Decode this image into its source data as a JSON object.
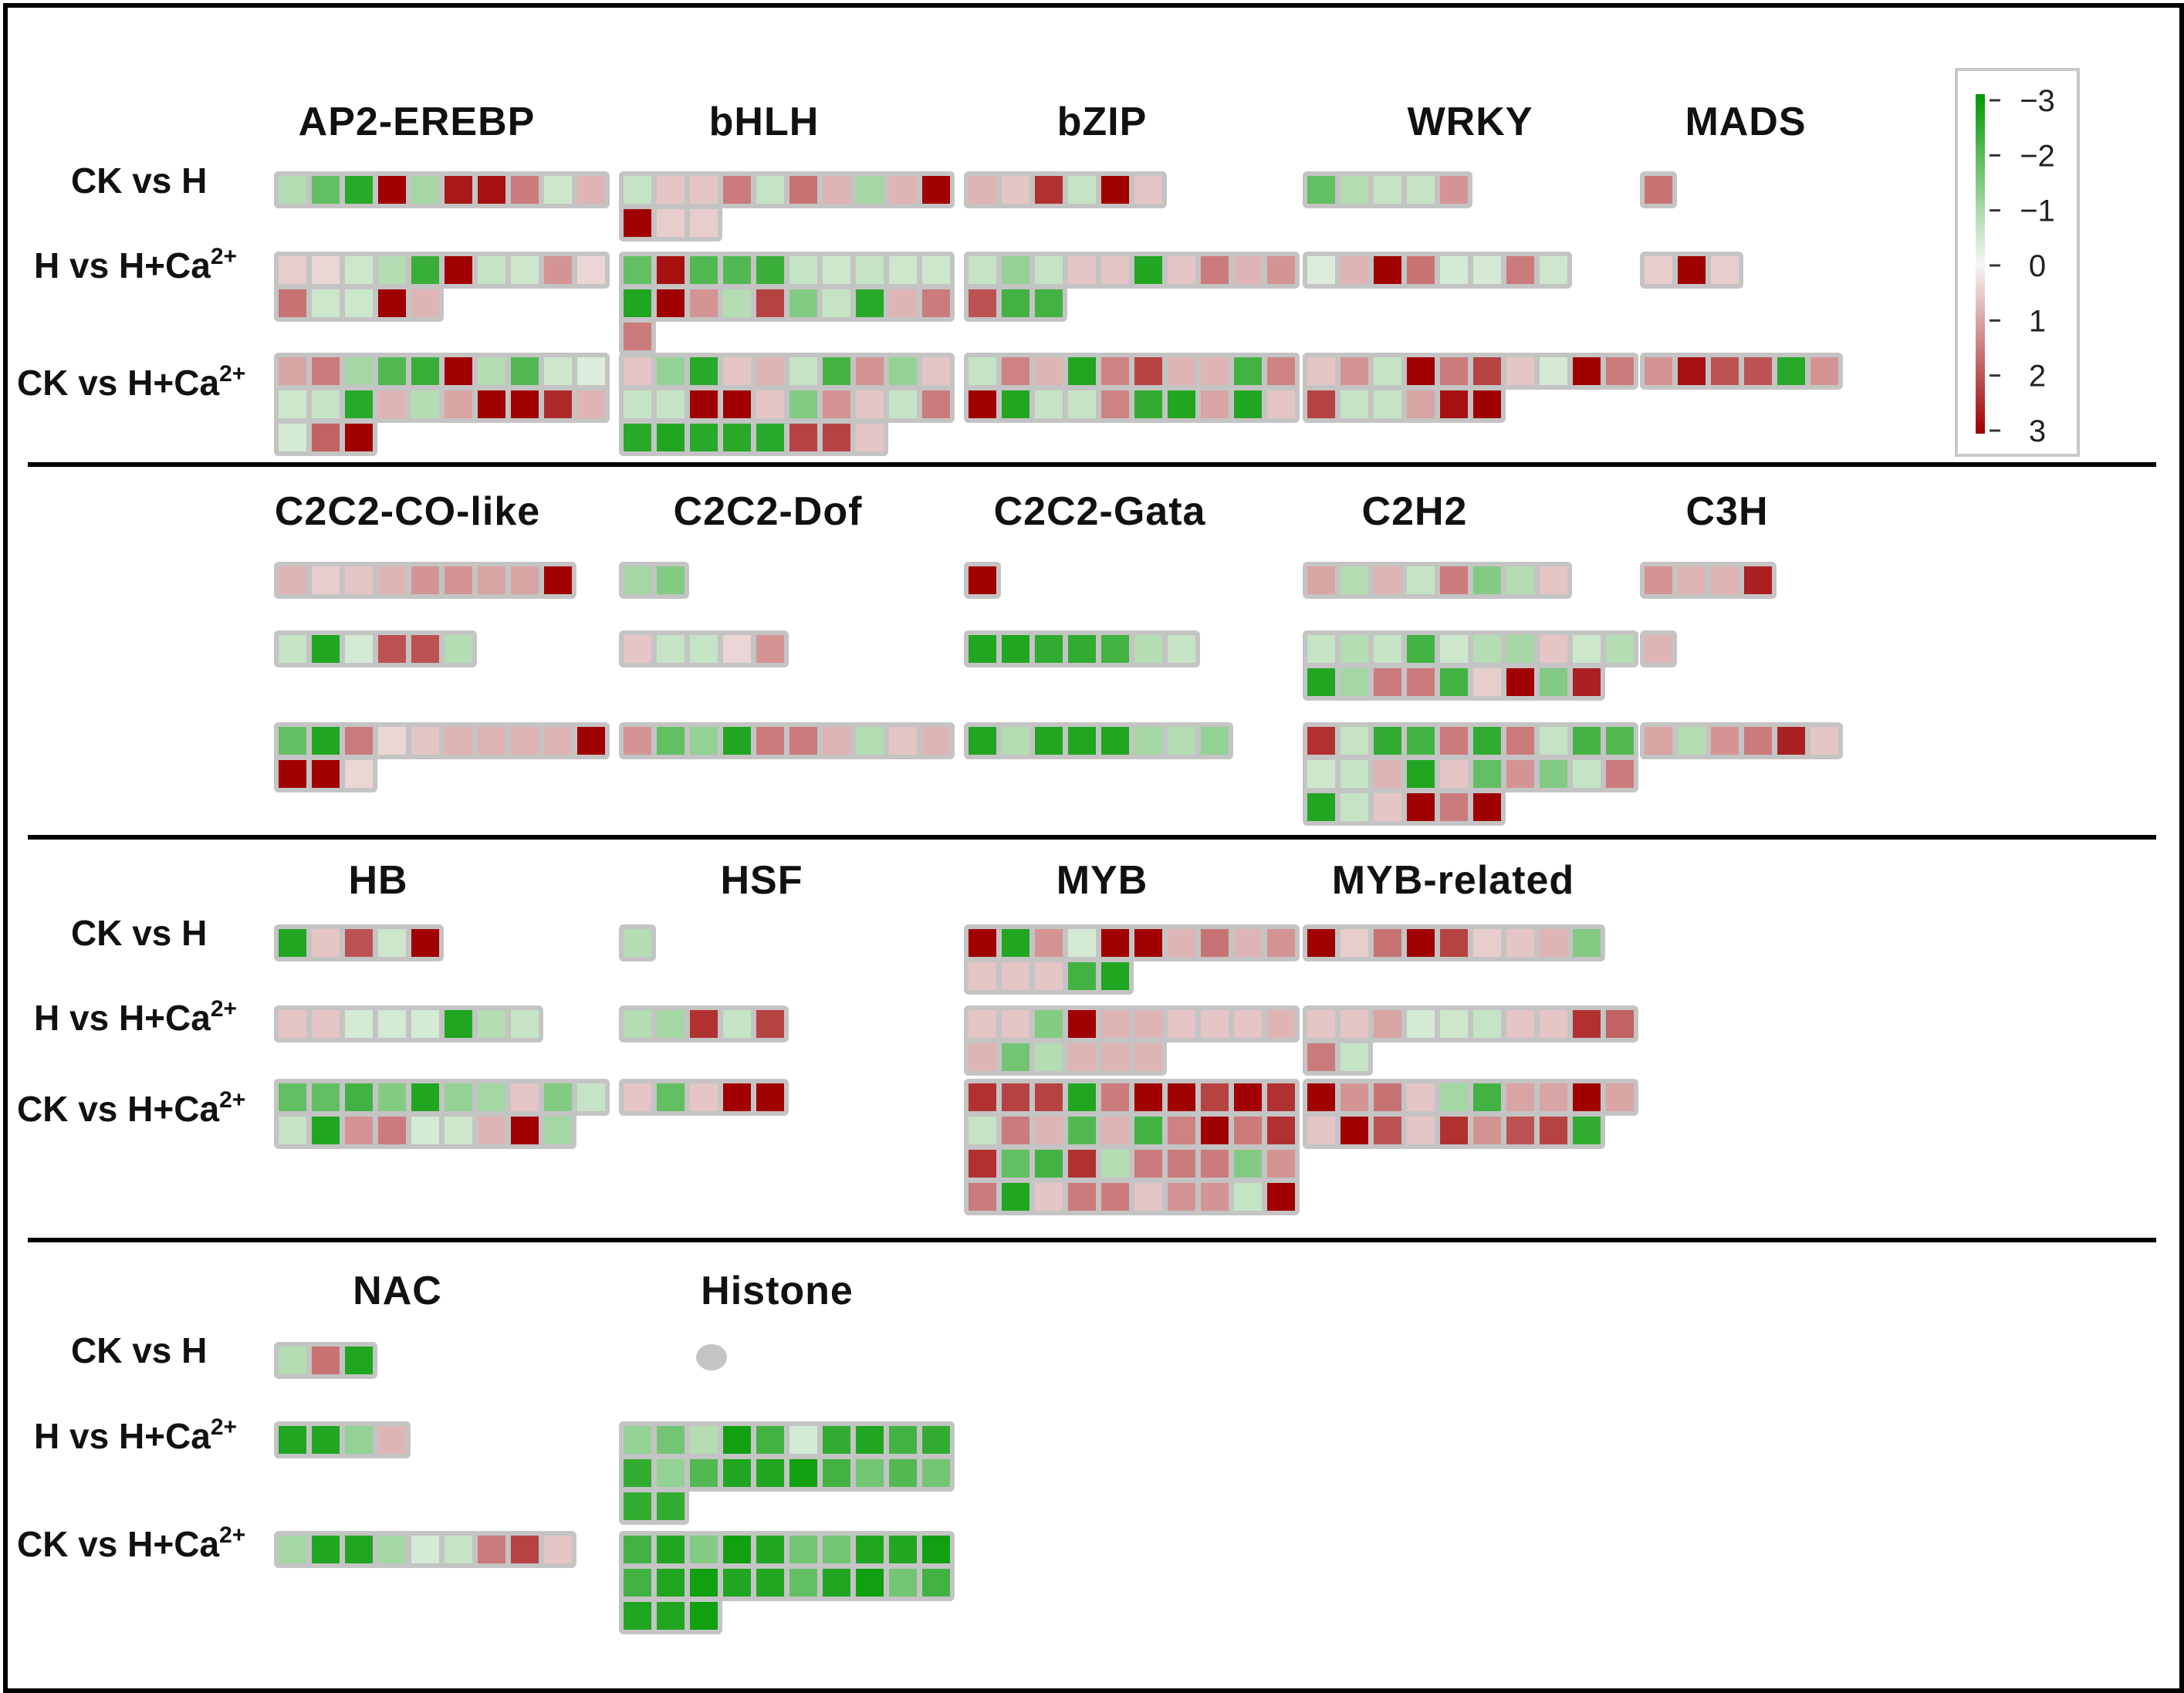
{
  "comparisons": [
    "CK vs H",
    "H vs H+Ca",
    "CK vs H+Ca"
  ],
  "superscript": "2+",
  "colors": {
    "background_box": "#c4c4c4",
    "positive_max": "#a00000",
    "negative_max": "#009a00",
    "neutral": "#f6f6f6",
    "divider": "#000000"
  },
  "legend": {
    "ticks": [
      "−3",
      "−2",
      "−1",
      "0",
      "1",
      "2",
      "3"
    ],
    "min": -3,
    "max": 3,
    "note": "sign convention: green = negative (top), red = positive (bottom)"
  },
  "panels": [
    {
      "show_comparison_labels": true,
      "families": [
        {
          "name": "AP2-EREBP",
          "rows": [
            [
              -0.8,
              -1.8,
              -2.5,
              3,
              -1,
              2.7,
              2.8,
              1.5,
              -0.5,
              0.8
            ],
            [
              0.5,
              0.4,
              -0.5,
              -0.8,
              -2.3,
              3,
              -0.6,
              -0.5,
              1.2,
              0.4,
              1.6,
              -0.5,
              -0.5,
              3,
              0.8
            ],
            [
              1,
              1.5,
              -1,
              -2,
              -2.3,
              3,
              -0.8,
              -2,
              -0.5,
              -0.3,
              -0.5,
              -0.6,
              -2.5,
              0.8,
              -0.8,
              1,
              3,
              3,
              2.5,
              0.8,
              -0.4,
              1.8,
              3
            ]
          ]
        },
        {
          "name": "bHLH",
          "rows": [
            [
              -0.6,
              0.6,
              0.6,
              1.5,
              -0.6,
              1.6,
              0.8,
              -1.0,
              0.8,
              3,
              3,
              0.5,
              0.5
            ],
            [
              -1.8,
              2.8,
              -2.0,
              -2.0,
              -2.3,
              -0.6,
              -0.5,
              -0.6,
              -0.5,
              -0.5,
              -2.6,
              3,
              1.2,
              -0.8,
              2.2,
              -1.4,
              -0.6,
              -2.5,
              0.8,
              1.5,
              1.5
            ],
            [
              0.6,
              -1.2,
              -2.5,
              0.6,
              0.8,
              -0.6,
              -2.2,
              1.2,
              -1.2,
              0.6,
              -0.6,
              -0.6,
              3,
              3,
              0.6,
              -1.4,
              1.2,
              0.6,
              -0.6,
              1.5,
              -2.5,
              -2.6,
              -2.5,
              -2.5,
              -2.5,
              2.2,
              2.2,
              0.6
            ]
          ]
        },
        {
          "name": "bZIP",
          "rows": [
            [
              0.8,
              0.6,
              2.4,
              -0.6,
              3,
              0.6
            ],
            [
              -0.6,
              -1.2,
              -0.6,
              0.6,
              0.6,
              -2.6,
              0.6,
              1.5,
              0.8,
              1.2,
              2,
              -2.2,
              -2.2
            ],
            [
              -0.6,
              1.4,
              0.8,
              -2.6,
              1.4,
              2.2,
              0.8,
              0.8,
              -2.2,
              1.4,
              3,
              -2.6,
              -0.6,
              -0.6,
              1.4,
              -2.4,
              -2.6,
              1.0,
              -2.6,
              0.6
            ]
          ]
        },
        {
          "name": "WRKY",
          "rows": [
            [
              -1.8,
              -0.8,
              -0.6,
              -0.6,
              1.2
            ],
            [
              -0.3,
              0.8,
              3,
              1.6,
              -0.4,
              -0.4,
              1.5,
              -0.5
            ],
            [
              0.6,
              1.2,
              -0.6,
              3,
              1.5,
              2.2,
              0.6,
              -0.4,
              3,
              1.5,
              2.2,
              -0.6,
              -0.6,
              1.0,
              2.8,
              3
            ]
          ]
        },
        {
          "name": "MADS",
          "rows": [
            [
              1.6
            ],
            [
              0.5,
              3,
              0.5
            ],
            [
              1.2,
              2.8,
              2.0,
              2.0,
              -2.5,
              1.2
            ]
          ]
        }
      ]
    },
    {
      "show_comparison_labels": false,
      "families": [
        {
          "name": "C2C2-CO-like",
          "rows": [
            [
              0.8,
              0.5,
              0.6,
              0.8,
              1.2,
              1.2,
              1.0,
              1.0,
              3
            ],
            [
              -0.6,
              -2.6,
              -0.4,
              2.0,
              2.0,
              -0.8
            ],
            [
              -1.8,
              -2.6,
              1.5,
              0.4,
              0.6,
              0.8,
              0.8,
              0.8,
              0.8,
              3,
              3,
              3,
              0.4
            ]
          ]
        },
        {
          "name": "C2C2-Dof",
          "rows": [
            [
              -1.0,
              -1.4
            ],
            [
              0.6,
              -0.6,
              -0.6,
              0.4,
              1.2
            ],
            [
              1.2,
              -1.8,
              -1.2,
              -2.6,
              1.5,
              1.5,
              0.8,
              -0.8,
              0.6,
              0.8
            ]
          ]
        },
        {
          "name": "C2C2-Gata",
          "rows": [
            [
              3
            ],
            [
              -2.6,
              -2.6,
              -2.4,
              -2.4,
              -2.2,
              -0.8,
              -0.6
            ],
            [
              -2.6,
              -0.8,
              -2.6,
              -2.6,
              -2.6,
              -1.0,
              -0.8,
              -1.2
            ]
          ]
        },
        {
          "name": "C2H2",
          "rows": [
            [
              1.0,
              -0.8,
              0.8,
              -0.6,
              1.5,
              -1.4,
              -0.8,
              0.6
            ],
            [
              -0.6,
              -0.8,
              -0.6,
              -2.2,
              -0.5,
              -0.8,
              -1.0,
              0.6,
              -0.5,
              -0.8,
              -2.6,
              -1.0,
              1.5,
              1.5,
              -2.2,
              0.5,
              3,
              -1.4,
              2.6
            ],
            [
              2.4,
              -0.6,
              -2.4,
              -2.2,
              1.5,
              -2.4,
              1.5,
              -0.6,
              -2.2,
              -2.0,
              -0.5,
              -0.6,
              0.8,
              -2.6,
              0.6,
              -1.8,
              1.2,
              -1.4,
              -0.6,
              1.5,
              -2.6,
              -0.6,
              0.6,
              3,
              1.5,
              3
            ]
          ]
        },
        {
          "name": "C3H",
          "rows": [
            [
              1.2,
              0.8,
              0.8,
              2.6
            ],
            [
              0.8
            ],
            [
              1.0,
              -0.8,
              1.2,
              1.5,
              2.6,
              0.6
            ]
          ]
        }
      ]
    },
    {
      "show_comparison_labels": true,
      "families": [
        {
          "name": "HB",
          "rows": [
            [
              -2.6,
              0.6,
              2.0,
              -0.5,
              3
            ],
            [
              0.6,
              0.6,
              -0.4,
              -0.4,
              -0.4,
              -2.6,
              -0.8,
              -0.6
            ],
            [
              -1.8,
              -1.8,
              -2.2,
              -1.4,
              -2.6,
              -1.2,
              -1.0,
              0.6,
              -1.4,
              -0.6,
              -0.6,
              -2.6,
              1.2,
              1.5,
              -0.4,
              -0.5,
              0.8,
              3,
              -1.0
            ]
          ]
        },
        {
          "name": "HSF",
          "rows": [
            [
              -0.8
            ],
            [
              -0.8,
              -1.0,
              2.4,
              -0.6,
              2.2
            ],
            [
              0.6,
              -1.8,
              0.6,
              3,
              3
            ]
          ]
        },
        {
          "name": "MYB",
          "rows": [
            [
              3,
              -2.6,
              1.2,
              -0.4,
              3,
              3,
              0.8,
              1.6,
              0.8,
              1.2,
              0.6,
              0.6,
              0.6,
              -2.2,
              -2.6
            ],
            [
              0.6,
              0.6,
              -1.4,
              3,
              0.8,
              0.8,
              0.6,
              0.6,
              0.6,
              0.8,
              0.8,
              -1.6,
              -0.8,
              0.8,
              0.8,
              0.8
            ],
            [
              2.4,
              2.2,
              2.2,
              -2.6,
              1.5,
              3,
              3,
              2.2,
              3,
              2.4,
              -0.6,
              1.5,
              0.8,
              -2.0,
              0.8,
              -2.2,
              1.4,
              3,
              1.5,
              2.4,
              2.4,
              -1.8,
              -2.2,
              2.4,
              -0.8,
              1.5,
              1.5,
              1.5,
              -1.4,
              1.2,
              1.5,
              -2.6,
              0.6,
              1.5,
              1.5,
              0.6,
              1.2,
              1.2,
              -0.6,
              3
            ]
          ]
        },
        {
          "name": "MYB-related",
          "rows": [
            [
              3,
              0.5,
              1.6,
              3,
              2.2,
              0.5,
              0.6,
              0.8,
              -1.4
            ],
            [
              0.6,
              0.6,
              1.0,
              -0.4,
              -0.5,
              -0.6,
              0.6,
              0.6,
              2.4,
              1.8,
              1.5,
              -0.6
            ],
            [
              3,
              1.2,
              1.6,
              0.6,
              -1.0,
              -2.2,
              1.0,
              1.0,
              3,
              1.0,
              0.6,
              3,
              2.0,
              0.6,
              2.4,
              1.2,
              2.0,
              2.2,
              -2.4
            ]
          ]
        }
      ]
    },
    {
      "show_comparison_labels": true,
      "families": [
        {
          "name": "NAC",
          "rows": [
            [
              -0.8,
              1.6,
              -2.6
            ],
            [
              -2.6,
              -2.6,
              -1.2,
              0.8
            ],
            [
              -1.0,
              -2.6,
              -2.6,
              -1.0,
              -0.4,
              -0.6,
              1.5,
              2.2,
              0.6
            ]
          ]
        },
        {
          "name": "Histone",
          "rows": [
            [],
            [
              -1.2,
              -1.6,
              -0.8,
              -2.8,
              -2.2,
              -0.4,
              -2.4,
              -2.6,
              -2.2,
              -2.4,
              -2.4,
              -1.2,
              -2.0,
              -2.6,
              -2.6,
              -2.8,
              -2.2,
              -1.6,
              -2.0,
              -1.6,
              -2.4,
              -2.4
            ],
            [
              -2.2,
              -2.6,
              -1.4,
              -2.8,
              -2.6,
              -1.6,
              -1.6,
              -2.6,
              -2.6,
              -2.8,
              -2.2,
              -2.6,
              -2.8,
              -2.6,
              -2.6,
              -1.8,
              -2.6,
              -2.8,
              -1.6,
              -2.2,
              -2.6,
              -2.6,
              -2.8
            ]
          ]
        }
      ]
    }
  ]
}
